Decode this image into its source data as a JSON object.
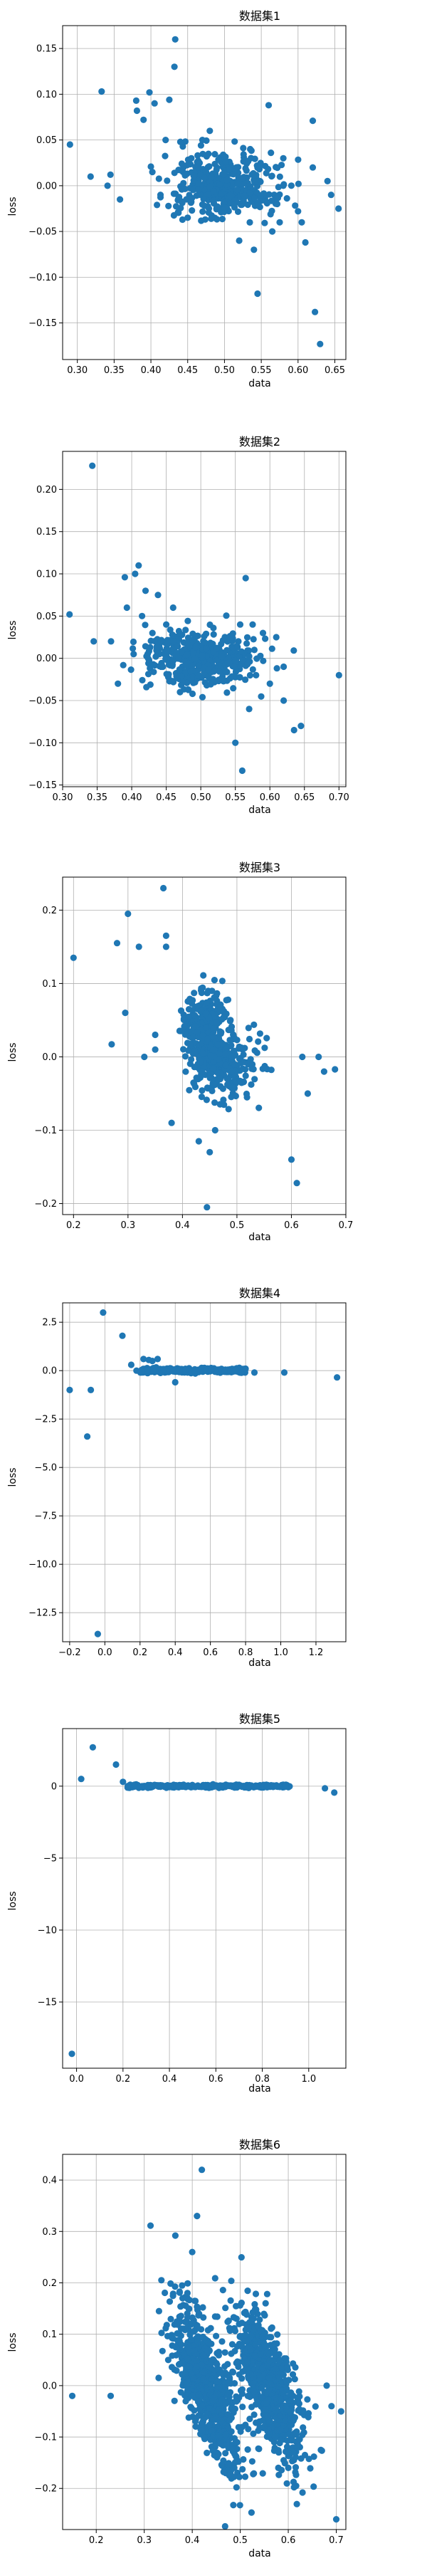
{
  "colors": {
    "marker": "#1f77b4",
    "grid": "#b0b0b0",
    "axis": "#000000",
    "background": "#ffffff"
  },
  "chart_data": [
    {
      "type": "scatter",
      "title": "数据集1",
      "xlabel": "data",
      "ylabel": "loss",
      "xlim": [
        0.28,
        0.665
      ],
      "ylim": [
        -0.19,
        0.175
      ],
      "xticks": [
        "0.30",
        "0.35",
        "0.40",
        "0.45",
        "0.50",
        "0.55",
        "0.60",
        "0.65"
      ],
      "yticks": [
        "−0.15",
        "−0.10",
        "−0.05",
        "0.00",
        "0.05",
        "0.10",
        "0.15"
      ],
      "grid": true,
      "cluster": {
        "center": [
          0.5,
          0.0
        ],
        "spread": [
          0.035,
          0.017
        ],
        "count": 420
      },
      "points": {
        "x": [
          0.29,
          0.318,
          0.333,
          0.341,
          0.345,
          0.358,
          0.38,
          0.381,
          0.39,
          0.398,
          0.402,
          0.405,
          0.413,
          0.42,
          0.425,
          0.432,
          0.433,
          0.44,
          0.455,
          0.465,
          0.54,
          0.545,
          0.56,
          0.575,
          0.58,
          0.6,
          0.61,
          0.62,
          0.623,
          0.63,
          0.64,
          0.655,
          0.645,
          0.62,
          0.605,
          0.58,
          0.565,
          0.45,
          0.48,
          0.52,
          0.535,
          0.47
        ],
        "y": [
          0.045,
          0.01,
          0.103,
          0.0,
          0.012,
          -0.015,
          0.093,
          0.082,
          0.072,
          0.102,
          0.015,
          0.09,
          -0.01,
          0.05,
          0.094,
          0.13,
          0.16,
          0.048,
          0.03,
          0.02,
          -0.07,
          -0.118,
          0.088,
          -0.04,
          0.0,
          -0.028,
          -0.062,
          0.071,
          -0.138,
          -0.173,
          0.005,
          -0.025,
          -0.01,
          0.02,
          -0.04,
          0.03,
          -0.05,
          -0.035,
          0.06,
          -0.06,
          0.04,
          0.05
        ]
      }
    },
    {
      "type": "scatter",
      "title": "数据集2",
      "xlabel": "data",
      "ylabel": "loss",
      "xlim": [
        0.3,
        0.71
      ],
      "ylim": [
        -0.152,
        0.245
      ],
      "xticks": [
        "0.30",
        "0.35",
        "0.40",
        "0.45",
        "0.50",
        "0.55",
        "0.60",
        "0.65",
        "0.70"
      ],
      "yticks": [
        "−0.15",
        "−0.10",
        "−0.05",
        "0.00",
        "0.05",
        "0.10",
        "0.15",
        "0.20"
      ],
      "grid": true,
      "cluster": {
        "center": [
          0.5,
          0.0
        ],
        "spread": [
          0.04,
          0.016
        ],
        "count": 460
      },
      "points": {
        "x": [
          0.31,
          0.343,
          0.345,
          0.37,
          0.38,
          0.39,
          0.393,
          0.405,
          0.41,
          0.415,
          0.42,
          0.43,
          0.438,
          0.45,
          0.46,
          0.55,
          0.56,
          0.565,
          0.57,
          0.58,
          0.6,
          0.62,
          0.635,
          0.645,
          0.7,
          0.62,
          0.59,
          0.575,
          0.47,
          0.445
        ],
        "y": [
          0.052,
          0.228,
          0.02,
          0.02,
          -0.03,
          0.096,
          0.06,
          0.1,
          0.11,
          0.05,
          0.08,
          0.03,
          0.075,
          0.04,
          0.06,
          -0.1,
          -0.133,
          0.095,
          -0.06,
          -0.02,
          -0.03,
          -0.05,
          -0.085,
          -0.08,
          -0.02,
          -0.01,
          0.03,
          0.04,
          -0.04,
          -0.01
        ]
      }
    },
    {
      "type": "scatter",
      "title": "数据集3",
      "xlabel": "data",
      "ylabel": "loss",
      "xlim": [
        0.18,
        0.7
      ],
      "ylim": [
        -0.215,
        0.245
      ],
      "xticks": [
        "0.2",
        "0.3",
        "0.4",
        "0.5",
        "0.6",
        "0.7"
      ],
      "yticks": [
        "−0.2",
        "−0.1",
        "0.0",
        "0.1",
        "0.2"
      ],
      "grid": true,
      "clusters": [
        {
          "center": [
            0.44,
            0.035
          ],
          "spread": [
            0.02,
            0.03
          ],
          "count": 260
        },
        {
          "center": [
            0.48,
            -0.01
          ],
          "spread": [
            0.03,
            0.025
          ],
          "count": 240
        }
      ],
      "points": {
        "x": [
          0.2,
          0.27,
          0.28,
          0.295,
          0.3,
          0.32,
          0.35,
          0.365,
          0.37,
          0.37,
          0.38,
          0.43,
          0.445,
          0.45,
          0.46,
          0.6,
          0.61,
          0.62,
          0.63,
          0.65,
          0.66,
          0.68,
          0.35,
          0.33
        ],
        "y": [
          0.135,
          0.017,
          0.155,
          0.06,
          0.195,
          0.15,
          0.03,
          0.23,
          0.15,
          0.165,
          -0.09,
          -0.115,
          -0.205,
          -0.13,
          -0.1,
          -0.14,
          -0.172,
          0.0,
          -0.05,
          0.0,
          -0.02,
          -0.017,
          0.01,
          0.0
        ]
      }
    },
    {
      "type": "scatter",
      "title": "数据集4",
      "xlabel": "data",
      "ylabel": "loss",
      "xlim": [
        -0.24,
        1.37
      ],
      "ylim": [
        -14.0,
        3.5
      ],
      "xticks": [
        "−0.2",
        "0.0",
        "0.2",
        "0.4",
        "0.6",
        "0.8",
        "1.0",
        "1.2"
      ],
      "yticks": [
        "−12.5",
        "−10.0",
        "−7.5",
        "−5.0",
        "−2.5",
        "0.0",
        "2.5"
      ],
      "grid": true,
      "cluster": {
        "center": [
          0.55,
          0.0
        ],
        "spread": [
          0.15,
          0.06
        ],
        "count": 300,
        "range": [
          0.2,
          0.8
        ]
      },
      "points": {
        "x": [
          -0.2,
          -0.1,
          -0.08,
          -0.04,
          -0.01,
          0.1,
          0.15,
          0.18,
          0.22,
          0.25,
          0.27,
          0.3,
          0.8,
          0.85,
          1.02,
          1.32,
          0.4
        ],
        "y": [
          -1.0,
          -3.4,
          -1.0,
          -13.6,
          3.0,
          1.8,
          0.3,
          0.0,
          0.6,
          0.55,
          0.5,
          0.6,
          0.1,
          -0.1,
          -0.1,
          -0.35,
          -0.6
        ]
      }
    },
    {
      "type": "scatter",
      "title": "数据集5",
      "xlabel": "data",
      "ylabel": "loss",
      "xlim": [
        -0.06,
        1.16
      ],
      "ylim": [
        -19.6,
        4.0
      ],
      "xticks": [
        "0.0",
        "0.2",
        "0.4",
        "0.6",
        "0.8",
        "1.0"
      ],
      "yticks": [
        "−15",
        "−10",
        "−5",
        "0"
      ],
      "grid": true,
      "cluster": {
        "center": [
          0.55,
          0.0
        ],
        "spread": [
          0.18,
          0.05
        ],
        "count": 320,
        "range": [
          0.22,
          0.92
        ]
      },
      "points": {
        "x": [
          -0.02,
          0.02,
          0.07,
          0.17,
          0.2,
          0.22,
          0.25,
          0.9,
          1.07,
          1.11
        ],
        "y": [
          -18.6,
          0.5,
          2.7,
          1.5,
          0.3,
          -0.1,
          0.1,
          0.0,
          -0.15,
          -0.45
        ]
      }
    },
    {
      "type": "scatter",
      "title": "数据集6",
      "xlabel": "data",
      "ylabel": "loss",
      "xlim": [
        0.13,
        0.72
      ],
      "ylim": [
        -0.28,
        0.45
      ],
      "xticks": [
        "0.2",
        "0.3",
        "0.4",
        "0.5",
        "0.6",
        "0.7"
      ],
      "yticks": [
        "−0.2",
        "−0.1",
        "0.0",
        "0.1",
        "0.2",
        "0.3",
        "0.4"
      ],
      "grid": true,
      "clusters": [
        {
          "center": [
            0.43,
            0.0
          ],
          "spread": [
            0.035,
            0.06
          ],
          "count": 700,
          "slope": -1.6
        },
        {
          "center": [
            0.56,
            0.0
          ],
          "spread": [
            0.035,
            0.055
          ],
          "count": 700,
          "slope": -1.4
        }
      ],
      "points": {
        "x": [
          0.15,
          0.23,
          0.33,
          0.35,
          0.37,
          0.38,
          0.39,
          0.4,
          0.41,
          0.42,
          0.68,
          0.69,
          0.7,
          0.71,
          0.6,
          0.58
        ],
        "y": [
          -0.02,
          -0.02,
          0.015,
          0.05,
          0.12,
          0.17,
          0.18,
          0.26,
          0.33,
          0.42,
          0.0,
          -0.04,
          -0.26,
          -0.05,
          -0.16,
          -0.13
        ]
      }
    }
  ]
}
